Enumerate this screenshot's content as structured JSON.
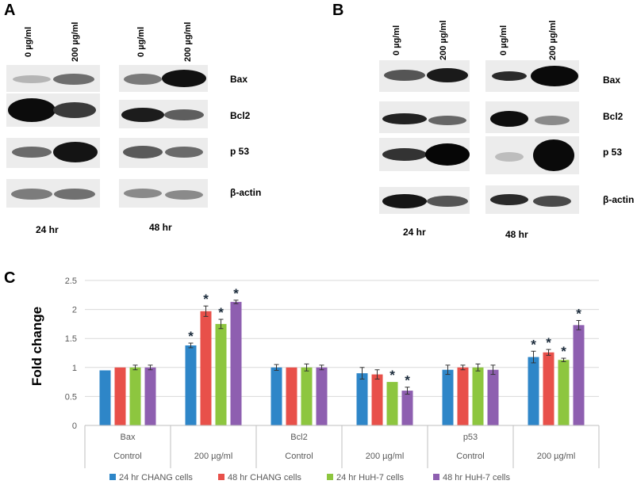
{
  "panels": {
    "a": "A",
    "b": "B",
    "c": "C"
  },
  "blots": {
    "lanes": [
      "0 µg/ml",
      "200 µg/ml"
    ],
    "proteins": [
      "Bax",
      "Bcl2",
      "p 53",
      "β-actin"
    ],
    "times": [
      "24 hr",
      "48 hr"
    ]
  },
  "chart_data": {
    "type": "bar",
    "ylabel": "Fold change",
    "xlabel": "",
    "ylim": [
      0,
      2.5
    ],
    "yticks": [
      "0",
      "0.5",
      "1",
      "1.5",
      "2",
      "2.5"
    ],
    "grid": true,
    "legend_position": "bottom",
    "group_labels": [
      "Bax",
      "Bcl2",
      "p53"
    ],
    "categories": [
      "Control",
      "200 µg/ml",
      "Control",
      "200 µg/ml",
      "Control",
      "200 µg/ml"
    ],
    "series": [
      {
        "name": "24 hr CHANG cells",
        "color": "#2e86c8",
        "values": [
          0.95,
          1.38,
          1.0,
          0.9,
          0.96,
          1.18
        ],
        "errors": [
          0.0,
          0.04,
          0.05,
          0.1,
          0.08,
          0.1
        ],
        "significant": [
          false,
          true,
          false,
          false,
          false,
          true
        ]
      },
      {
        "name": "48 hr CHANG cells",
        "color": "#e8504a",
        "values": [
          1.0,
          1.97,
          1.0,
          0.88,
          1.0,
          1.26
        ],
        "errors": [
          0.0,
          0.09,
          0.0,
          0.08,
          0.04,
          0.05
        ],
        "significant": [
          false,
          true,
          false,
          false,
          false,
          true
        ]
      },
      {
        "name": "24 hr HuH-7 cells",
        "color": "#8dc63f",
        "values": [
          1.0,
          1.75,
          1.0,
          0.75,
          1.0,
          1.13
        ],
        "errors": [
          0.04,
          0.08,
          0.06,
          0.0,
          0.06,
          0.03
        ],
        "significant": [
          false,
          true,
          false,
          true,
          false,
          true
        ]
      },
      {
        "name": "48 hr HuH-7 cells",
        "color": "#8e5fb0",
        "values": [
          1.0,
          2.13,
          1.0,
          0.6,
          0.96,
          1.73
        ],
        "errors": [
          0.04,
          0.03,
          0.04,
          0.06,
          0.08,
          0.08
        ],
        "significant": [
          false,
          true,
          false,
          true,
          false,
          true
        ]
      }
    ],
    "significance_marker": "*"
  }
}
